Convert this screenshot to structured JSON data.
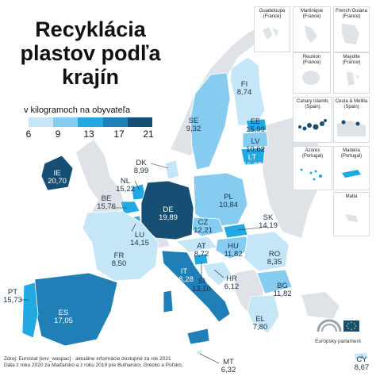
{
  "title_lines": [
    "Recyklácia",
    "plastov podľa",
    "krajín"
  ],
  "legend": {
    "title": "v kilogramoch na obyvateľa",
    "ticks": [
      "6",
      "9",
      "13",
      "17",
      "21"
    ],
    "colors": [
      "#c5e6f7",
      "#86ccf0",
      "#22a9e3",
      "#1f7fb6",
      "#174f74"
    ]
  },
  "map_colors": {
    "land_nonmember": "#dfe3e8",
    "sea": "#ffffff",
    "border": "#ffffff"
  },
  "countries": [
    {
      "code": "FI",
      "value": "8,74"
    },
    {
      "code": "SE",
      "value": "9,32"
    },
    {
      "code": "EE",
      "value": "15,99"
    },
    {
      "code": "LV",
      "value": "10,62"
    },
    {
      "code": "LT",
      "value": "16,37"
    },
    {
      "code": "IE",
      "value": "20,70"
    },
    {
      "code": "DK",
      "value": "8,99"
    },
    {
      "code": "NL",
      "value": "15,22"
    },
    {
      "code": "BE",
      "value": "15,76"
    },
    {
      "code": "DE",
      "value": "19,89"
    },
    {
      "code": "PL",
      "value": "10,84"
    },
    {
      "code": "LU",
      "value": "14,15"
    },
    {
      "code": "CZ",
      "value": "12,21"
    },
    {
      "code": "SK",
      "value": "14,19"
    },
    {
      "code": "FR",
      "value": "8,50"
    },
    {
      "code": "AT",
      "value": "8,72"
    },
    {
      "code": "HU",
      "value": "11,82"
    },
    {
      "code": "RO",
      "value": "8,35"
    },
    {
      "code": "IT",
      "value": "18,28"
    },
    {
      "code": "SI",
      "value": "13,10"
    },
    {
      "code": "HR",
      "value": "6,12"
    },
    {
      "code": "BG",
      "value": "11,82"
    },
    {
      "code": "PT",
      "value": "15,73"
    },
    {
      "code": "ES",
      "value": "17,05"
    },
    {
      "code": "EL",
      "value": "7,80"
    },
    {
      "code": "MT",
      "value": "6,32"
    },
    {
      "code": "CY",
      "value": "8,67"
    }
  ],
  "insets": [
    {
      "name": "Guadeloupe",
      "sub": "(France)"
    },
    {
      "name": "Martinique",
      "sub": "(France)"
    },
    {
      "name": "French Guiana",
      "sub": "(France)"
    },
    {
      "name": "Reunion",
      "sub": "(France)"
    },
    {
      "name": "Mayotte",
      "sub": "(France)"
    },
    {
      "name": "Canary Islands",
      "sub": "(Spain)"
    },
    {
      "name": "Ceuta & Melilla",
      "sub": "(Spain)"
    },
    {
      "name": "Azores",
      "sub": "(Portugal)"
    },
    {
      "name": "Madeira",
      "sub": "(Portugal)"
    },
    {
      "name": "Malta",
      "sub": ""
    }
  ],
  "footer": {
    "line1": "Zdroj: Eurostat [env_waspac] · aktuálne informácie dostupné za rok 2021",
    "line2": "Dáta z roku 2020 za Maďarsko a z roku 2019 pre Bulharsko, Grécko a Poľsko,"
  },
  "logo_text": "Európsky parlament"
}
